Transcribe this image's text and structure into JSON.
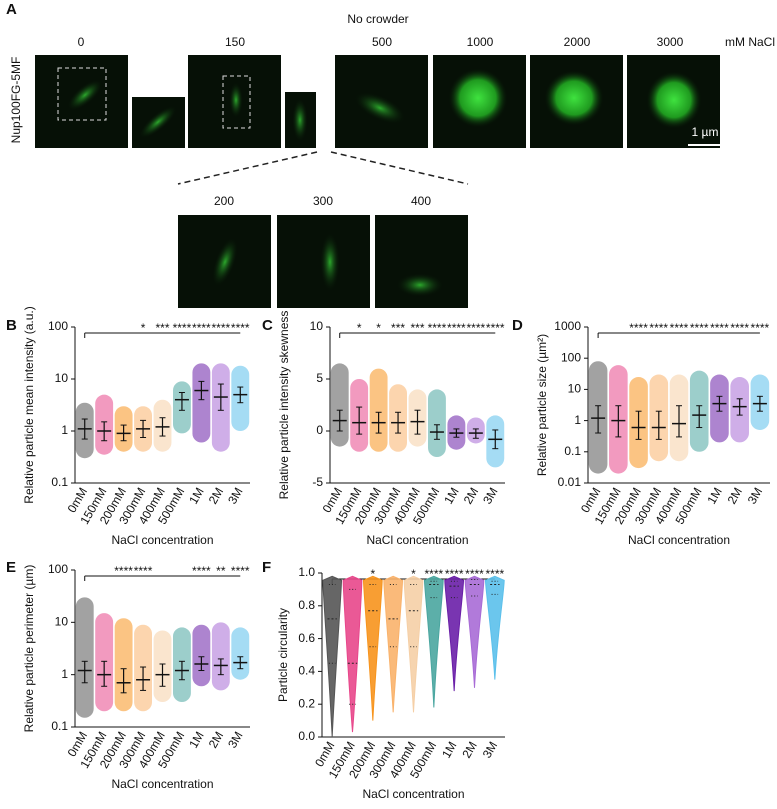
{
  "figure": {
    "panel": "A",
    "title": "No crowder",
    "unit": "mM NaCl",
    "ylabel": "Nup100FG-5MF",
    "scale_bar": "1 µm",
    "top_labels": [
      "0",
      "150",
      "500",
      "1000",
      "2000",
      "3000"
    ],
    "bottom_labels": [
      "200",
      "300",
      "400"
    ]
  },
  "chart_data": [
    {
      "type": "dot-plot",
      "panel": "B",
      "ylabel": "Relative particle mean intensity (a.u.)",
      "xlabel": "NaCl concentration",
      "categories": [
        "0mM",
        "150mM",
        "200mM",
        "300mM",
        "400mM",
        "500mM",
        "1M",
        "2M",
        "3M"
      ],
      "colors": [
        "#555555",
        "#e8478b",
        "#f7941d",
        "#f9b26b",
        "#f5cfa6",
        "#4aa6a0",
        "#6a1fa8",
        "#a86bd6",
        "#5bc0eb"
      ],
      "log": true,
      "ylim": [
        0.1,
        100
      ],
      "yticks": [
        0.1,
        1,
        10,
        100
      ],
      "median": [
        1.1,
        1.0,
        0.9,
        1.1,
        1.2,
        4,
        6,
        4.5,
        5
      ],
      "lower": [
        0.7,
        0.65,
        0.65,
        0.75,
        0.8,
        2.5,
        4,
        2.5,
        3.5
      ],
      "upper": [
        1.7,
        1.5,
        1.3,
        1.6,
        1.8,
        5.5,
        9,
        8,
        7
      ],
      "min": [
        0.3,
        0.35,
        0.4,
        0.4,
        0.4,
        0.9,
        0.6,
        0.4,
        1
      ],
      "max": [
        3.5,
        5,
        3,
        3,
        4,
        9,
        20,
        20,
        18
      ],
      "significance": [
        null,
        null,
        null,
        "*",
        "***",
        "****",
        "****",
        "****",
        "****"
      ]
    },
    {
      "type": "dot-plot",
      "panel": "C",
      "ylabel": "Relative particle intensity skewness",
      "xlabel": "NaCl concentration",
      "categories": [
        "0mM",
        "150mM",
        "200mM",
        "300mM",
        "400mM",
        "500mM",
        "1M",
        "2M",
        "3M"
      ],
      "colors": [
        "#555555",
        "#e8478b",
        "#f7941d",
        "#f9b26b",
        "#f5cfa6",
        "#4aa6a0",
        "#6a1fa8",
        "#a86bd6",
        "#5bc0eb"
      ],
      "log": false,
      "ylim": [
        -5,
        10
      ],
      "yticks": [
        -5,
        0,
        5,
        10
      ],
      "median": [
        1,
        0.8,
        0.8,
        0.8,
        0.9,
        -0.1,
        -0.2,
        -0.2,
        -0.8
      ],
      "lower": [
        0,
        -0.3,
        -0.2,
        -0.2,
        -0.3,
        -0.8,
        -0.6,
        -0.7,
        -1.7
      ],
      "upper": [
        2,
        2.3,
        1.8,
        1.8,
        2,
        0.6,
        0.2,
        0.2,
        0.1
      ],
      "min": [
        -1.5,
        -2,
        -2,
        -2,
        -1.5,
        -2.5,
        -1.8,
        -1.2,
        -3.5
      ],
      "max": [
        6.5,
        5,
        6,
        4.5,
        4,
        4,
        1.5,
        1.3,
        1.5
      ],
      "significance": [
        null,
        "*",
        "*",
        "***",
        "***",
        "****",
        "****",
        "****",
        "****"
      ]
    },
    {
      "type": "dot-plot",
      "panel": "D",
      "ylabel": "Relative particle size (µm²)",
      "xlabel": "NaCl concentration",
      "categories": [
        "0mM",
        "150mM",
        "200mM",
        "300mM",
        "400mM",
        "500mM",
        "1M",
        "2M",
        "3M"
      ],
      "colors": [
        "#555555",
        "#e8478b",
        "#f7941d",
        "#f9b26b",
        "#f5cfa6",
        "#4aa6a0",
        "#6a1fa8",
        "#a86bd6",
        "#5bc0eb"
      ],
      "log": true,
      "ylim": [
        0.01,
        1000
      ],
      "yticks": [
        0.01,
        0.1,
        1,
        10,
        100,
        1000
      ],
      "median": [
        1.2,
        1,
        0.6,
        0.6,
        0.8,
        1.5,
        3.5,
        2.8,
        3.5
      ],
      "lower": [
        0.4,
        0.3,
        0.25,
        0.25,
        0.3,
        0.6,
        2,
        1.5,
        2
      ],
      "upper": [
        3,
        3,
        2,
        2,
        3,
        3,
        6,
        5,
        6
      ],
      "min": [
        0.02,
        0.02,
        0.03,
        0.05,
        0.05,
        0.1,
        0.2,
        0.2,
        0.5
      ],
      "max": [
        80,
        60,
        25,
        30,
        30,
        40,
        30,
        25,
        30
      ],
      "significance": [
        null,
        null,
        "****",
        "****",
        "****",
        "****",
        "****",
        "****",
        "****"
      ]
    },
    {
      "type": "dot-plot",
      "panel": "E",
      "ylabel": "Relative particle perimeter (µm)",
      "xlabel": "NaCl concentration",
      "categories": [
        "0mM",
        "150mM",
        "200mM",
        "300mM",
        "400mM",
        "500mM",
        "1M",
        "2M",
        "3M"
      ],
      "colors": [
        "#555555",
        "#e8478b",
        "#f7941d",
        "#f9b26b",
        "#f5cfa6",
        "#4aa6a0",
        "#6a1fa8",
        "#a86bd6",
        "#5bc0eb"
      ],
      "log": true,
      "ylim": [
        0.1,
        100
      ],
      "yticks": [
        0.1,
        1,
        10,
        100
      ],
      "median": [
        1.2,
        1,
        0.7,
        0.8,
        1,
        1.2,
        1.6,
        1.5,
        1.7
      ],
      "lower": [
        0.7,
        0.6,
        0.45,
        0.5,
        0.6,
        0.8,
        1.2,
        1,
        1.3
      ],
      "upper": [
        1.8,
        1.8,
        1.3,
        1.4,
        1.6,
        1.8,
        2.2,
        2,
        2.2
      ],
      "min": [
        0.15,
        0.2,
        0.2,
        0.2,
        0.3,
        0.3,
        0.6,
        0.5,
        0.8
      ],
      "max": [
        30,
        15,
        12,
        9,
        7,
        8,
        9,
        10,
        8
      ],
      "significance": [
        null,
        null,
        "****",
        "****",
        null,
        null,
        "****",
        "**",
        "****"
      ]
    },
    {
      "type": "violin",
      "panel": "F",
      "ylabel": "Particle circularity",
      "xlabel": "NaCl concentration",
      "categories": [
        "0mM",
        "150mM",
        "200mM",
        "300mM",
        "400mM",
        "500mM",
        "1M",
        "2M",
        "3M"
      ],
      "colors": [
        "#555555",
        "#e8478b",
        "#f7941d",
        "#f9b26b",
        "#f5cfa6",
        "#4aa6a0",
        "#6a1fa8",
        "#a86bd6",
        "#5bc0eb"
      ],
      "log": false,
      "ylim": [
        0,
        1
      ],
      "yticks": [
        {
          "value": 0,
          "label": "0.0"
        },
        {
          "value": 0.2,
          "label": "0.2"
        },
        {
          "value": 0.4,
          "label": "0.4"
        },
        {
          "value": 0.6,
          "label": "0.6"
        },
        {
          "value": 0.8,
          "label": "0.8"
        },
        {
          "value": 1,
          "label": "1.0"
        }
      ],
      "median": [
        0.72,
        0.45,
        0.77,
        0.72,
        0.77,
        0.93,
        0.92,
        0.93,
        0.93
      ],
      "lower": [
        0.45,
        0.2,
        0.55,
        0.55,
        0.55,
        0.85,
        0.85,
        0.86,
        0.87
      ],
      "upper": [
        0.93,
        0.9,
        0.93,
        0.93,
        0.93,
        0.95,
        0.95,
        0.96,
        0.95
      ],
      "min": [
        0.0,
        0.03,
        0.1,
        0.15,
        0.15,
        0.18,
        0.28,
        0.3,
        0.35
      ],
      "max": [
        0.98,
        0.98,
        0.98,
        0.98,
        0.98,
        0.98,
        0.98,
        0.98,
        0.98
      ],
      "significance": [
        null,
        null,
        "*",
        null,
        "*",
        "****",
        "****",
        "****",
        "****"
      ]
    }
  ]
}
